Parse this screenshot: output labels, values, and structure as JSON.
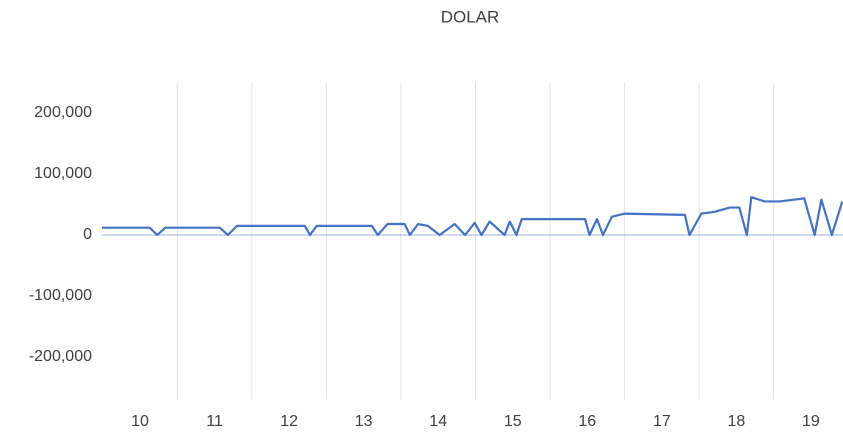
{
  "chart_data": {
    "type": "line",
    "title": "DOLAR",
    "x": [
      9.49,
      10.13,
      10.23,
      10.34,
      11.07,
      11.18,
      11.3,
      12.21,
      12.28,
      12.37,
      13.11,
      13.19,
      13.32,
      13.55,
      13.62,
      13.73,
      13.86,
      14.02,
      14.22,
      14.36,
      14.49,
      14.58,
      14.69,
      14.89,
      14.96,
      15.05,
      15.12,
      15.97,
      16.03,
      16.13,
      16.21,
      16.33,
      16.5,
      17.31,
      17.37,
      17.53,
      17.71,
      17.91,
      18.04,
      18.14,
      18.2,
      18.38,
      18.58,
      18.91,
      19.05,
      19.14,
      19.28,
      19.42
    ],
    "series": [
      {
        "name": "DOLAR",
        "color": "#4472c4",
        "values": [
          12000,
          12000,
          0,
          12000,
          12000,
          0,
          15000,
          15000,
          0,
          15000,
          15000,
          0,
          18000,
          18000,
          0,
          18000,
          15000,
          0,
          18000,
          0,
          20000,
          0,
          22000,
          0,
          22000,
          0,
          26000,
          26000,
          0,
          26000,
          0,
          30000,
          35000,
          33000,
          0,
          35000,
          38000,
          45000,
          45000,
          0,
          62000,
          55000,
          55000,
          60000,
          0,
          58000,
          0,
          55000
        ]
      }
    ],
    "xlim": [
      9.49,
      19.43
    ],
    "xticks": [
      10,
      11,
      12,
      13,
      14,
      15,
      16,
      17,
      18,
      19
    ],
    "ylim": [
      -270000,
      250000
    ],
    "yticks": [
      {
        "value": 200000,
        "label": "200,000"
      },
      {
        "value": 100000,
        "label": "100,000"
      },
      0,
      {
        "value": -100000,
        "label": "-100,000"
      },
      {
        "value": -200000,
        "label": "-200,000"
      }
    ],
    "grid": "x"
  }
}
